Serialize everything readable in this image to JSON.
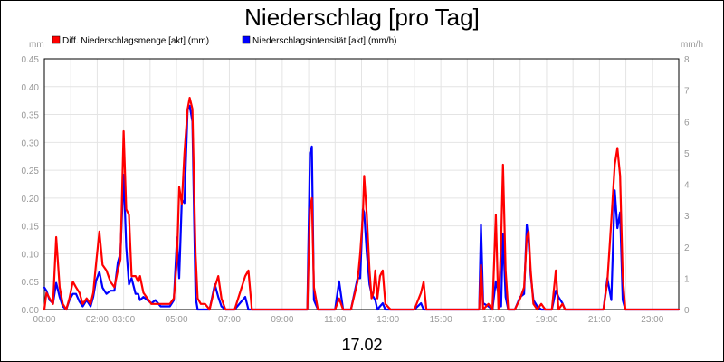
{
  "chart_data": {
    "type": "line",
    "title": "Niederschlag [pro Tag]",
    "xlabel": "17.02",
    "ylabel_left": "mm",
    "ylabel_right": "mm/h",
    "ylim_left": [
      0,
      0.45
    ],
    "ylim_right": [
      0,
      8
    ],
    "y_ticks_left": [
      "0.00",
      "0.05",
      "0.10",
      "0.15",
      "0.20",
      "0.25",
      "0.30",
      "0.35",
      "0.40",
      "0.45"
    ],
    "y_ticks_right": [
      "0",
      "1",
      "2",
      "3",
      "4",
      "5",
      "6",
      "7",
      "8"
    ],
    "x_range_hours": [
      0,
      24
    ],
    "x_ticks": [
      {
        "h": 0,
        "label": "00:00"
      },
      {
        "h": 2,
        "label": "02:00"
      },
      {
        "h": 3,
        "label": "03:00"
      },
      {
        "h": 5,
        "label": "05:00"
      },
      {
        "h": 7,
        "label": "07:00"
      },
      {
        "h": 9,
        "label": "09:00"
      },
      {
        "h": 11,
        "label": "11:00"
      },
      {
        "h": 13,
        "label": "13:00"
      },
      {
        "h": 15,
        "label": "15:00"
      },
      {
        "h": 17,
        "label": "17:00"
      },
      {
        "h": 19,
        "label": "19:00"
      },
      {
        "h": 21,
        "label": "21:00"
      },
      {
        "h": 23,
        "label": "23:00"
      }
    ],
    "grid": true,
    "legend": "top-left",
    "series": [
      {
        "name": "Diff. Niederschlagsmenge [akt] (mm)",
        "color": "#ff0000",
        "axis": "left",
        "points": [
          [
            0.0,
            0.0
          ],
          [
            0.08,
            0.03
          ],
          [
            0.2,
            0.02
          ],
          [
            0.33,
            0.01
          ],
          [
            0.45,
            0.13
          ],
          [
            0.58,
            0.04
          ],
          [
            0.7,
            0.01
          ],
          [
            0.83,
            0.0
          ],
          [
            0.95,
            0.02
          ],
          [
            1.08,
            0.05
          ],
          [
            1.2,
            0.04
          ],
          [
            1.33,
            0.03
          ],
          [
            1.45,
            0.01
          ],
          [
            1.6,
            0.02
          ],
          [
            1.75,
            0.01
          ],
          [
            1.85,
            0.03
          ],
          [
            1.95,
            0.08
          ],
          [
            2.08,
            0.14
          ],
          [
            2.2,
            0.08
          ],
          [
            2.35,
            0.07
          ],
          [
            2.5,
            0.05
          ],
          [
            2.65,
            0.04
          ],
          [
            2.78,
            0.07
          ],
          [
            2.88,
            0.09
          ],
          [
            3.0,
            0.32
          ],
          [
            3.1,
            0.18
          ],
          [
            3.2,
            0.17
          ],
          [
            3.3,
            0.06
          ],
          [
            3.45,
            0.06
          ],
          [
            3.55,
            0.05
          ],
          [
            3.62,
            0.06
          ],
          [
            3.75,
            0.03
          ],
          [
            3.9,
            0.02
          ],
          [
            4.05,
            0.01
          ],
          [
            4.2,
            0.01
          ],
          [
            4.4,
            0.01
          ],
          [
            4.55,
            0.01
          ],
          [
            4.75,
            0.01
          ],
          [
            4.9,
            0.02
          ],
          [
            5.02,
            0.09
          ],
          [
            5.1,
            0.22
          ],
          [
            5.2,
            0.19
          ],
          [
            5.3,
            0.28
          ],
          [
            5.42,
            0.36
          ],
          [
            5.5,
            0.38
          ],
          [
            5.6,
            0.36
          ],
          [
            5.72,
            0.1
          ],
          [
            5.8,
            0.02
          ],
          [
            5.92,
            0.01
          ],
          [
            6.08,
            0.01
          ],
          [
            6.25,
            0.0
          ],
          [
            6.45,
            0.04
          ],
          [
            6.58,
            0.06
          ],
          [
            6.7,
            0.02
          ],
          [
            6.85,
            0.0
          ],
          [
            7.2,
            0.0
          ],
          [
            7.6,
            0.06
          ],
          [
            7.72,
            0.07
          ],
          [
            7.85,
            0.0
          ],
          [
            8.3,
            0.0
          ],
          [
            9.0,
            0.0
          ],
          [
            9.6,
            0.0
          ],
          [
            9.95,
            0.0
          ],
          [
            10.05,
            0.18
          ],
          [
            10.12,
            0.2
          ],
          [
            10.2,
            0.04
          ],
          [
            10.35,
            0.0
          ],
          [
            10.6,
            0.0
          ],
          [
            11.0,
            0.0
          ],
          [
            11.15,
            0.02
          ],
          [
            11.3,
            0.0
          ],
          [
            11.6,
            0.0
          ],
          [
            11.85,
            0.05
          ],
          [
            11.95,
            0.1
          ],
          [
            12.05,
            0.17
          ],
          [
            12.1,
            0.24
          ],
          [
            12.2,
            0.17
          ],
          [
            12.3,
            0.07
          ],
          [
            12.38,
            0.02
          ],
          [
            12.45,
            0.03
          ],
          [
            12.52,
            0.07
          ],
          [
            12.6,
            0.02
          ],
          [
            12.7,
            0.06
          ],
          [
            12.8,
            0.07
          ],
          [
            12.9,
            0.01
          ],
          [
            13.1,
            0.0
          ],
          [
            13.5,
            0.0
          ],
          [
            14.0,
            0.0
          ],
          [
            14.25,
            0.03
          ],
          [
            14.35,
            0.05
          ],
          [
            14.45,
            0.0
          ],
          [
            15.0,
            0.0
          ],
          [
            15.6,
            0.0
          ],
          [
            16.2,
            0.0
          ],
          [
            16.45,
            0.0
          ],
          [
            16.52,
            0.08
          ],
          [
            16.6,
            0.0
          ],
          [
            16.8,
            0.01
          ],
          [
            16.95,
            0.0
          ],
          [
            17.08,
            0.17
          ],
          [
            17.18,
            0.0
          ],
          [
            17.28,
            0.12
          ],
          [
            17.35,
            0.26
          ],
          [
            17.45,
            0.07
          ],
          [
            17.55,
            0.0
          ],
          [
            17.8,
            0.0
          ],
          [
            18.0,
            0.02
          ],
          [
            18.15,
            0.04
          ],
          [
            18.25,
            0.13
          ],
          [
            18.32,
            0.14
          ],
          [
            18.4,
            0.07
          ],
          [
            18.5,
            0.01
          ],
          [
            18.65,
            0.0
          ],
          [
            18.8,
            0.01
          ],
          [
            18.95,
            0.0
          ],
          [
            19.2,
            0.0
          ],
          [
            19.35,
            0.07
          ],
          [
            19.45,
            0.0
          ],
          [
            19.6,
            0.01
          ],
          [
            19.7,
            0.0
          ],
          [
            20.0,
            0.0
          ],
          [
            20.3,
            0.0
          ],
          [
            20.6,
            0.0
          ],
          [
            20.9,
            0.0
          ],
          [
            21.15,
            0.0
          ],
          [
            21.3,
            0.05
          ],
          [
            21.45,
            0.16
          ],
          [
            21.58,
            0.26
          ],
          [
            21.68,
            0.29
          ],
          [
            21.78,
            0.24
          ],
          [
            21.88,
            0.06
          ],
          [
            21.98,
            0.0
          ],
          [
            22.3,
            0.0
          ],
          [
            23.0,
            0.0
          ],
          [
            24.0,
            0.0
          ]
        ]
      },
      {
        "name": "Niederschlagsintensität [akt] (mm/h)",
        "color": "#0000ff",
        "axis": "right",
        "points": [
          [
            0.0,
            0.7
          ],
          [
            0.08,
            0.6
          ],
          [
            0.2,
            0.3
          ],
          [
            0.33,
            0.2
          ],
          [
            0.45,
            0.85
          ],
          [
            0.58,
            0.4
          ],
          [
            0.7,
            0.1
          ],
          [
            0.83,
            0.0
          ],
          [
            0.95,
            0.3
          ],
          [
            1.08,
            0.5
          ],
          [
            1.2,
            0.5
          ],
          [
            1.33,
            0.25
          ],
          [
            1.45,
            0.1
          ],
          [
            1.6,
            0.3
          ],
          [
            1.75,
            0.1
          ],
          [
            1.85,
            0.4
          ],
          [
            1.95,
            0.9
          ],
          [
            2.08,
            1.2
          ],
          [
            2.2,
            0.7
          ],
          [
            2.35,
            0.5
          ],
          [
            2.5,
            0.6
          ],
          [
            2.65,
            0.6
          ],
          [
            2.78,
            1.5
          ],
          [
            2.88,
            1.8
          ],
          [
            3.0,
            4.3
          ],
          [
            3.1,
            2.0
          ],
          [
            3.2,
            0.8
          ],
          [
            3.3,
            1.0
          ],
          [
            3.45,
            0.5
          ],
          [
            3.55,
            0.5
          ],
          [
            3.62,
            0.3
          ],
          [
            3.75,
            0.4
          ],
          [
            3.9,
            0.3
          ],
          [
            4.05,
            0.2
          ],
          [
            4.2,
            0.3
          ],
          [
            4.4,
            0.1
          ],
          [
            4.55,
            0.1
          ],
          [
            4.75,
            0.1
          ],
          [
            4.9,
            0.3
          ],
          [
            5.02,
            2.3
          ],
          [
            5.1,
            1.0
          ],
          [
            5.2,
            3.5
          ],
          [
            5.3,
            3.4
          ],
          [
            5.42,
            6.4
          ],
          [
            5.5,
            6.5
          ],
          [
            5.6,
            6.0
          ],
          [
            5.72,
            0.4
          ],
          [
            5.8,
            0.0
          ],
          [
            5.92,
            0.0
          ],
          [
            6.08,
            0.0
          ],
          [
            6.25,
            0.0
          ],
          [
            6.45,
            0.8
          ],
          [
            6.58,
            0.4
          ],
          [
            6.7,
            0.1
          ],
          [
            6.85,
            0.0
          ],
          [
            7.2,
            0.0
          ],
          [
            7.6,
            0.4
          ],
          [
            7.72,
            0.0
          ],
          [
            7.85,
            0.0
          ],
          [
            8.3,
            0.0
          ],
          [
            9.0,
            0.0
          ],
          [
            9.6,
            0.0
          ],
          [
            9.95,
            0.0
          ],
          [
            10.05,
            5.0
          ],
          [
            10.12,
            5.2
          ],
          [
            10.2,
            0.3
          ],
          [
            10.35,
            0.0
          ],
          [
            10.6,
            0.0
          ],
          [
            11.0,
            0.0
          ],
          [
            11.15,
            0.9
          ],
          [
            11.3,
            0.0
          ],
          [
            11.6,
            0.0
          ],
          [
            11.85,
            1.0
          ],
          [
            11.95,
            1.0
          ],
          [
            12.05,
            3.2
          ],
          [
            12.1,
            3.1
          ],
          [
            12.2,
            1.8
          ],
          [
            12.3,
            0.8
          ],
          [
            12.38,
            0.5
          ],
          [
            12.45,
            0.4
          ],
          [
            12.52,
            0.3
          ],
          [
            12.6,
            0.0
          ],
          [
            12.7,
            0.1
          ],
          [
            12.8,
            0.2
          ],
          [
            12.9,
            0.0
          ],
          [
            13.1,
            0.0
          ],
          [
            13.5,
            0.0
          ],
          [
            14.0,
            0.0
          ],
          [
            14.25,
            0.2
          ],
          [
            14.35,
            0.0
          ],
          [
            14.45,
            0.0
          ],
          [
            15.0,
            0.0
          ],
          [
            15.6,
            0.0
          ],
          [
            16.2,
            0.0
          ],
          [
            16.45,
            0.0
          ],
          [
            16.52,
            2.7
          ],
          [
            16.6,
            0.2
          ],
          [
            16.8,
            0.1
          ],
          [
            16.95,
            0.0
          ],
          [
            17.08,
            0.9
          ],
          [
            17.18,
            0.5
          ],
          [
            17.28,
            0.1
          ],
          [
            17.35,
            2.4
          ],
          [
            17.45,
            0.4
          ],
          [
            17.55,
            0.0
          ],
          [
            17.8,
            0.0
          ],
          [
            18.0,
            0.4
          ],
          [
            18.15,
            0.5
          ],
          [
            18.25,
            2.7
          ],
          [
            18.32,
            2.2
          ],
          [
            18.4,
            1.1
          ],
          [
            18.5,
            0.3
          ],
          [
            18.65,
            0.1
          ],
          [
            18.8,
            0.0
          ],
          [
            18.95,
            0.0
          ],
          [
            19.2,
            0.0
          ],
          [
            19.35,
            0.6
          ],
          [
            19.45,
            0.4
          ],
          [
            19.6,
            0.2
          ],
          [
            19.7,
            0.0
          ],
          [
            20.0,
            0.0
          ],
          [
            20.3,
            0.0
          ],
          [
            20.6,
            0.0
          ],
          [
            20.9,
            0.0
          ],
          [
            21.15,
            0.0
          ],
          [
            21.3,
            1.0
          ],
          [
            21.45,
            0.3
          ],
          [
            21.58,
            3.8
          ],
          [
            21.68,
            2.6
          ],
          [
            21.78,
            3.1
          ],
          [
            21.88,
            0.3
          ],
          [
            21.98,
            0.0
          ],
          [
            22.3,
            0.0
          ],
          [
            23.0,
            0.0
          ],
          [
            24.0,
            0.0
          ]
        ]
      }
    ]
  }
}
